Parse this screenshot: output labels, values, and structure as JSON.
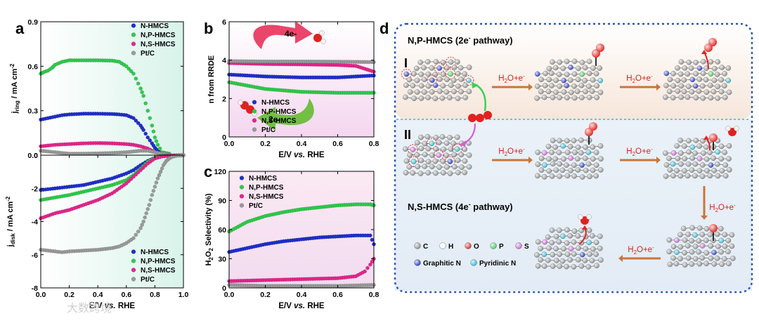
{
  "panel_letters": {
    "a": "a",
    "b": "b",
    "c": "c",
    "d": "d"
  },
  "colors": {
    "N-HMCS": "#1f2fcc",
    "N,P-HMCS": "#2ecc4a",
    "N,S-HMCS": "#e6258c",
    "Pt/C": "#9a9a9a"
  },
  "chart_data": [
    {
      "type": "scatter",
      "panel": "a-top",
      "ylabel": "j_ring / mA cm^-2",
      "ylim": [
        0,
        0.9
      ],
      "yticks": [
        "0.0",
        "0.3",
        "0.6",
        "0.9"
      ],
      "legend": [
        "N-HMCS",
        "N,P-HMCS",
        "N,S-HMCS",
        "Pt/C"
      ],
      "series": [
        {
          "name": "N-HMCS",
          "x": [
            0.0,
            0.05,
            0.1,
            0.15,
            0.2,
            0.3,
            0.4,
            0.5,
            0.55,
            0.6,
            0.65,
            0.7,
            0.72,
            0.75,
            0.78,
            0.8,
            0.82,
            0.85,
            0.9
          ],
          "y": [
            0.24,
            0.25,
            0.26,
            0.27,
            0.275,
            0.28,
            0.28,
            0.278,
            0.275,
            0.27,
            0.25,
            0.2,
            0.17,
            0.12,
            0.08,
            0.05,
            0.03,
            0.01,
            0.005
          ]
        },
        {
          "name": "N,P-HMCS",
          "x": [
            0.0,
            0.02,
            0.05,
            0.08,
            0.1,
            0.15,
            0.2,
            0.3,
            0.4,
            0.5,
            0.55,
            0.6,
            0.65,
            0.7,
            0.72,
            0.75,
            0.78,
            0.8,
            0.82,
            0.85,
            0.9
          ],
          "y": [
            0.55,
            0.56,
            0.57,
            0.59,
            0.61,
            0.63,
            0.64,
            0.64,
            0.64,
            0.638,
            0.63,
            0.6,
            0.55,
            0.45,
            0.4,
            0.3,
            0.2,
            0.12,
            0.07,
            0.02,
            0.01
          ]
        },
        {
          "name": "N,S-HMCS",
          "x": [
            0.0,
            0.1,
            0.2,
            0.3,
            0.4,
            0.5,
            0.6,
            0.65,
            0.7,
            0.75,
            0.8,
            0.85,
            0.9
          ],
          "y": [
            0.06,
            0.07,
            0.075,
            0.08,
            0.082,
            0.08,
            0.075,
            0.07,
            0.06,
            0.045,
            0.02,
            0.01,
            0.005
          ]
        },
        {
          "name": "Pt/C",
          "x": [
            0.0,
            0.1,
            0.2,
            0.3,
            0.4,
            0.5,
            0.6,
            0.7,
            0.75,
            0.8,
            0.85,
            0.9
          ],
          "y": [
            0.03,
            0.02,
            0.01,
            0.01,
            0.012,
            0.015,
            0.02,
            0.03,
            0.03,
            0.02,
            0.01,
            0.005
          ]
        }
      ]
    },
    {
      "type": "scatter",
      "panel": "a-bottom",
      "xlabel": "E/V vs. RHE",
      "ylabel": "j_disk / mA cm^-2",
      "xlim": [
        0,
        1.0
      ],
      "ylim": [
        -8,
        0
      ],
      "xticks": [
        "0.0",
        "0.2",
        "0.4",
        "0.6",
        "0.8",
        "1.0"
      ],
      "yticks": [
        "0",
        "-2",
        "-4",
        "-6",
        "-8"
      ],
      "legend": [
        "N-HMCS",
        "N,P-HMCS",
        "N,S-HMCS",
        "Pt/C"
      ],
      "series": [
        {
          "name": "N-HMCS",
          "x": [
            0.0,
            0.1,
            0.2,
            0.3,
            0.4,
            0.5,
            0.6,
            0.65,
            0.7,
            0.75,
            0.8,
            0.85,
            0.9,
            0.95,
            1.0
          ],
          "y": [
            -2.1,
            -2.0,
            -1.9,
            -1.8,
            -1.6,
            -1.4,
            -1.1,
            -0.9,
            -0.6,
            -0.35,
            -0.15,
            -0.05,
            -0.02,
            -0.01,
            0
          ]
        },
        {
          "name": "N,P-HMCS",
          "x": [
            0.0,
            0.1,
            0.2,
            0.3,
            0.4,
            0.5,
            0.6,
            0.65,
            0.7,
            0.75,
            0.8,
            0.85,
            0.9,
            0.95,
            1.0
          ],
          "y": [
            -2.7,
            -2.55,
            -2.4,
            -2.2,
            -2.0,
            -1.8,
            -1.5,
            -1.2,
            -0.8,
            -0.4,
            -0.15,
            -0.05,
            -0.02,
            -0.01,
            0
          ]
        },
        {
          "name": "N,S-HMCS",
          "x": [
            0.0,
            0.1,
            0.2,
            0.3,
            0.4,
            0.5,
            0.6,
            0.65,
            0.7,
            0.75,
            0.8,
            0.85,
            0.9,
            0.95,
            1.0
          ],
          "y": [
            -3.8,
            -3.5,
            -3.3,
            -3.0,
            -2.7,
            -2.3,
            -1.7,
            -1.3,
            -0.9,
            -0.5,
            -0.2,
            -0.08,
            -0.03,
            -0.01,
            0
          ]
        },
        {
          "name": "Pt/C",
          "x": [
            0.0,
            0.05,
            0.1,
            0.15,
            0.2,
            0.3,
            0.4,
            0.5,
            0.55,
            0.6,
            0.65,
            0.7,
            0.72,
            0.74,
            0.76,
            0.78,
            0.8,
            0.82,
            0.84,
            0.86,
            0.88,
            0.9,
            0.92,
            0.95,
            1.0
          ],
          "y": [
            -5.7,
            -5.75,
            -5.8,
            -5.85,
            -5.8,
            -5.75,
            -5.7,
            -5.6,
            -5.5,
            -5.3,
            -5.0,
            -4.4,
            -4.0,
            -3.5,
            -3.0,
            -2.4,
            -1.9,
            -1.4,
            -1.0,
            -0.6,
            -0.35,
            -0.2,
            -0.1,
            -0.04,
            -0.01
          ]
        }
      ]
    },
    {
      "type": "scatter",
      "panel": "b",
      "xlabel": "E/V vs. RHE",
      "ylabel": "n from RRDE",
      "xlim": [
        0,
        0.8
      ],
      "ylim": [
        0,
        6
      ],
      "xticks": [
        "0.0",
        "0.2",
        "0.4",
        "0.6",
        "0.8"
      ],
      "yticks": [
        "0",
        "2",
        "4",
        "6"
      ],
      "legend": [
        "N-HMCS",
        "N,P-HMCS",
        "N,S-HMCS",
        "Pt/C"
      ],
      "annotations": [
        "4e-",
        "2e-"
      ],
      "series": [
        {
          "name": "N-HMCS",
          "x": [
            0.0,
            0.2,
            0.4,
            0.6,
            0.8
          ],
          "y": [
            3.25,
            3.15,
            3.1,
            3.1,
            3.2
          ]
        },
        {
          "name": "N,P-HMCS",
          "x": [
            0.0,
            0.2,
            0.4,
            0.6,
            0.8
          ],
          "y": [
            2.85,
            2.5,
            2.35,
            2.3,
            2.3
          ]
        },
        {
          "name": "N,S-HMCS",
          "x": [
            0.0,
            0.2,
            0.4,
            0.6,
            0.7,
            0.8
          ],
          "y": [
            3.85,
            3.8,
            3.78,
            3.75,
            3.7,
            3.4
          ]
        },
        {
          "name": "Pt/C",
          "x": [
            0.0,
            0.2,
            0.4,
            0.6,
            0.8
          ],
          "y": [
            3.95,
            3.93,
            3.93,
            3.92,
            3.9
          ]
        }
      ]
    },
    {
      "type": "scatter",
      "panel": "c",
      "xlabel": "E/V vs. RHE",
      "ylabel": "H2O2 Selectivity (%)",
      "xlim": [
        0,
        0.8
      ],
      "ylim": [
        0,
        120
      ],
      "xticks": [
        "0.0",
        "0.2",
        "0.4",
        "0.6",
        "0.8"
      ],
      "yticks": [
        "0",
        "30",
        "60",
        "90",
        "120"
      ],
      "legend": [
        "N-HMCS",
        "N,P-HMCS",
        "N,S-HMCS",
        "Pt/C"
      ],
      "series": [
        {
          "name": "N-HMCS",
          "x": [
            0.0,
            0.1,
            0.2,
            0.3,
            0.4,
            0.5,
            0.6,
            0.7,
            0.78,
            0.8
          ],
          "y": [
            37,
            41,
            45,
            48,
            50,
            52,
            53,
            54,
            54,
            45
          ]
        },
        {
          "name": "N,P-HMCS",
          "x": [
            0.0,
            0.1,
            0.2,
            0.3,
            0.4,
            0.5,
            0.6,
            0.7,
            0.78,
            0.8
          ],
          "y": [
            58,
            68,
            74,
            78,
            81,
            83,
            85,
            86,
            86,
            85
          ]
        },
        {
          "name": "N,S-HMCS",
          "x": [
            0.0,
            0.2,
            0.4,
            0.6,
            0.7,
            0.75,
            0.78,
            0.8
          ],
          "y": [
            7,
            8,
            9,
            10,
            12,
            17,
            24,
            30
          ]
        },
        {
          "name": "Pt/C",
          "x": [
            0.0,
            0.2,
            0.4,
            0.6,
            0.8
          ],
          "y": [
            3,
            2,
            2,
            2,
            3
          ]
        }
      ]
    }
  ],
  "schematic": {
    "title_top": "N,P-HMCS (2e",
    "title_top_sup": "-",
    "title_top_end": " pathway)",
    "title_bottom": "N,S-HMCS (4e",
    "title_bottom_sup": "-",
    "title_bottom_end": " pathway)",
    "row_I": "I",
    "row_II": "II",
    "step_label": "H2O+e-",
    "legend_items": [
      {
        "label": "C",
        "color": "#8a8a8a"
      },
      {
        "label": "H",
        "color": "#f2f2f2"
      },
      {
        "label": "O",
        "color": "#e0221f"
      },
      {
        "label": "P",
        "color": "#3fcf55"
      },
      {
        "label": "S",
        "color": "#d15fd6"
      },
      {
        "label": "Graphitic N",
        "color": "#2035c9"
      },
      {
        "label": "Pyridinic N",
        "color": "#2fb9d4"
      }
    ]
  },
  "watermark": "大数跨境"
}
